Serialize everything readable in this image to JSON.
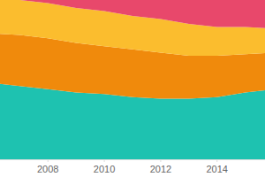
{
  "chart_data": {
    "type": "area",
    "stacked": true,
    "x": [
      2006,
      2007,
      2008,
      2009,
      2010,
      2011,
      2012,
      2013,
      2014,
      2015,
      2016
    ],
    "xlim": [
      2006.3,
      2015.7
    ],
    "xticks": [
      2008,
      2010,
      2012,
      2014
    ],
    "ylim": [
      0,
      100
    ],
    "tick_labels": "x",
    "grid": false,
    "series": [
      {
        "color": "#1ec2b0",
        "values": [
          48,
          46,
          44,
          42,
          41,
          39,
          38,
          38,
          39,
          42,
          44
        ]
      },
      {
        "color": "#f08a0c",
        "values": [
          31,
          32,
          32,
          31,
          30,
          30,
          29,
          27,
          26,
          24,
          23
        ]
      },
      {
        "color": "#fbbd2e",
        "values": [
          21,
          22,
          22,
          22,
          22,
          21,
          21,
          20,
          18,
          17,
          15
        ]
      },
      {
        "color": "#e8486b",
        "values": [
          0,
          0,
          2,
          5,
          7,
          10,
          12,
          15,
          17,
          17,
          18
        ]
      }
    ]
  }
}
